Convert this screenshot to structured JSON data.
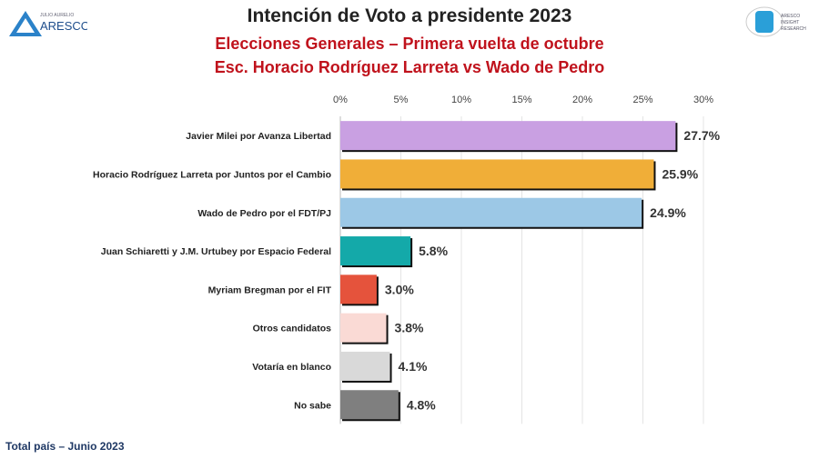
{
  "header": {
    "title": "Intención de Voto a presidente 2023",
    "subtitle1": "Elecciones Generales – Primera vuelta de octubre",
    "subtitle2": "Esc. Horacio Rodríguez Larreta vs Wado de Pedro"
  },
  "logos": {
    "left": {
      "small": "JULIO AURELIO",
      "big": "ARESCO"
    },
    "right": {
      "lines": [
        "ARESCO",
        "INSIGHT",
        "RESEARCH"
      ]
    }
  },
  "footer": "Total país – Junio 2023",
  "chart_data": {
    "type": "bar",
    "orientation": "horizontal",
    "categories": [
      "Javier Milei por Avanza Libertad",
      "Horacio Rodríguez Larreta por Juntos por el Cambio",
      "Wado de Pedro por el FDT/PJ",
      "Juan Schiaretti y J.M. Urtubey por Espacio Federal",
      "Myriam Bregman por el FIT",
      "Otros candidatos",
      "Votaría en blanco",
      "No sabe"
    ],
    "values": [
      27.7,
      25.9,
      24.9,
      5.8,
      3.0,
      3.8,
      4.1,
      4.8
    ],
    "labels": [
      "27.7%",
      "25.9%",
      "24.9%",
      "5.8%",
      "3.0%",
      "3.8%",
      "4.1%",
      "4.8%"
    ],
    "colors": [
      "#c9a0e2",
      "#f0ae38",
      "#9cc8e6",
      "#14a9a9",
      "#e5533c",
      "#fadad5",
      "#d9d9d9",
      "#7f7f7f"
    ],
    "xlim": [
      0,
      30
    ],
    "xticks": [
      "0%",
      "5%",
      "10%",
      "15%",
      "20%",
      "25%",
      "30%"
    ],
    "grid": true
  }
}
